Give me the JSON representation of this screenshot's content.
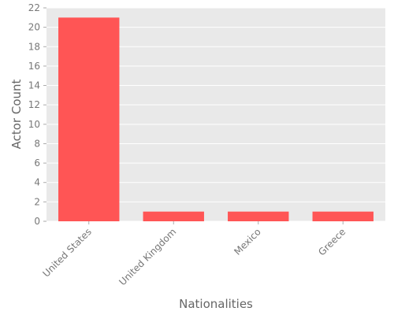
{
  "chart_data": {
    "type": "bar",
    "categories": [
      "United States",
      "United Kingdom",
      "Mexico",
      "Greece"
    ],
    "values": [
      21,
      1,
      1,
      1
    ],
    "title": "",
    "xlabel": "Nationalities",
    "ylabel": "Actor Count",
    "ylim": [
      0,
      22
    ],
    "yticks": [
      0,
      2,
      4,
      6,
      8,
      10,
      12,
      14,
      16,
      18,
      20,
      22
    ],
    "grid": true,
    "legend": "none",
    "colors": {
      "bar": "#ff5555",
      "plot_background": "#e9e9e9",
      "grid": "#ffffff"
    }
  }
}
